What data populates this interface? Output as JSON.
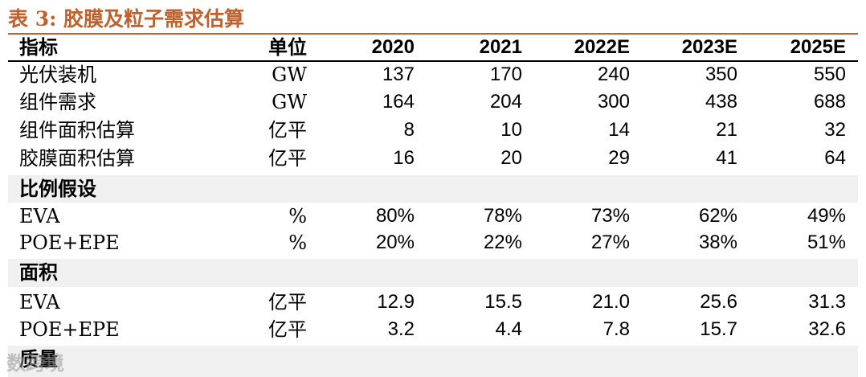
{
  "title": "表 3:  胶膜及粒子需求估算",
  "table": {
    "header": [
      "指标",
      "单位",
      "2020",
      "2021",
      "2022E",
      "2023E",
      "2025E"
    ],
    "rows": [
      [
        "光伏装机",
        "GW",
        "137",
        "170",
        "240",
        "350",
        "550"
      ],
      [
        "组件需求",
        "GW",
        "164",
        "204",
        "300",
        "438",
        "688"
      ],
      [
        "组件面积估算",
        "亿平",
        "8",
        "10",
        "14",
        "21",
        "32"
      ],
      [
        "胶膜面积估算",
        "亿平",
        "16",
        "20",
        "29",
        "41",
        "64"
      ],
      [
        "比例假设"
      ],
      [
        "EVA",
        "%",
        "80%",
        "78%",
        "73%",
        "62%",
        "49%"
      ],
      [
        "POE+EPE",
        "%",
        "20%",
        "22%",
        "27%",
        "38%",
        "51%"
      ],
      [
        "面积"
      ],
      [
        "EVA",
        "亿平",
        "12.9",
        "15.5",
        "21.0",
        "25.6",
        "31.3"
      ],
      [
        "POE+EPE",
        "亿平",
        "3.2",
        "4.4",
        "7.8",
        "15.7",
        "32.6"
      ],
      [
        "质量"
      ]
    ]
  },
  "watermark": "数跨境"
}
